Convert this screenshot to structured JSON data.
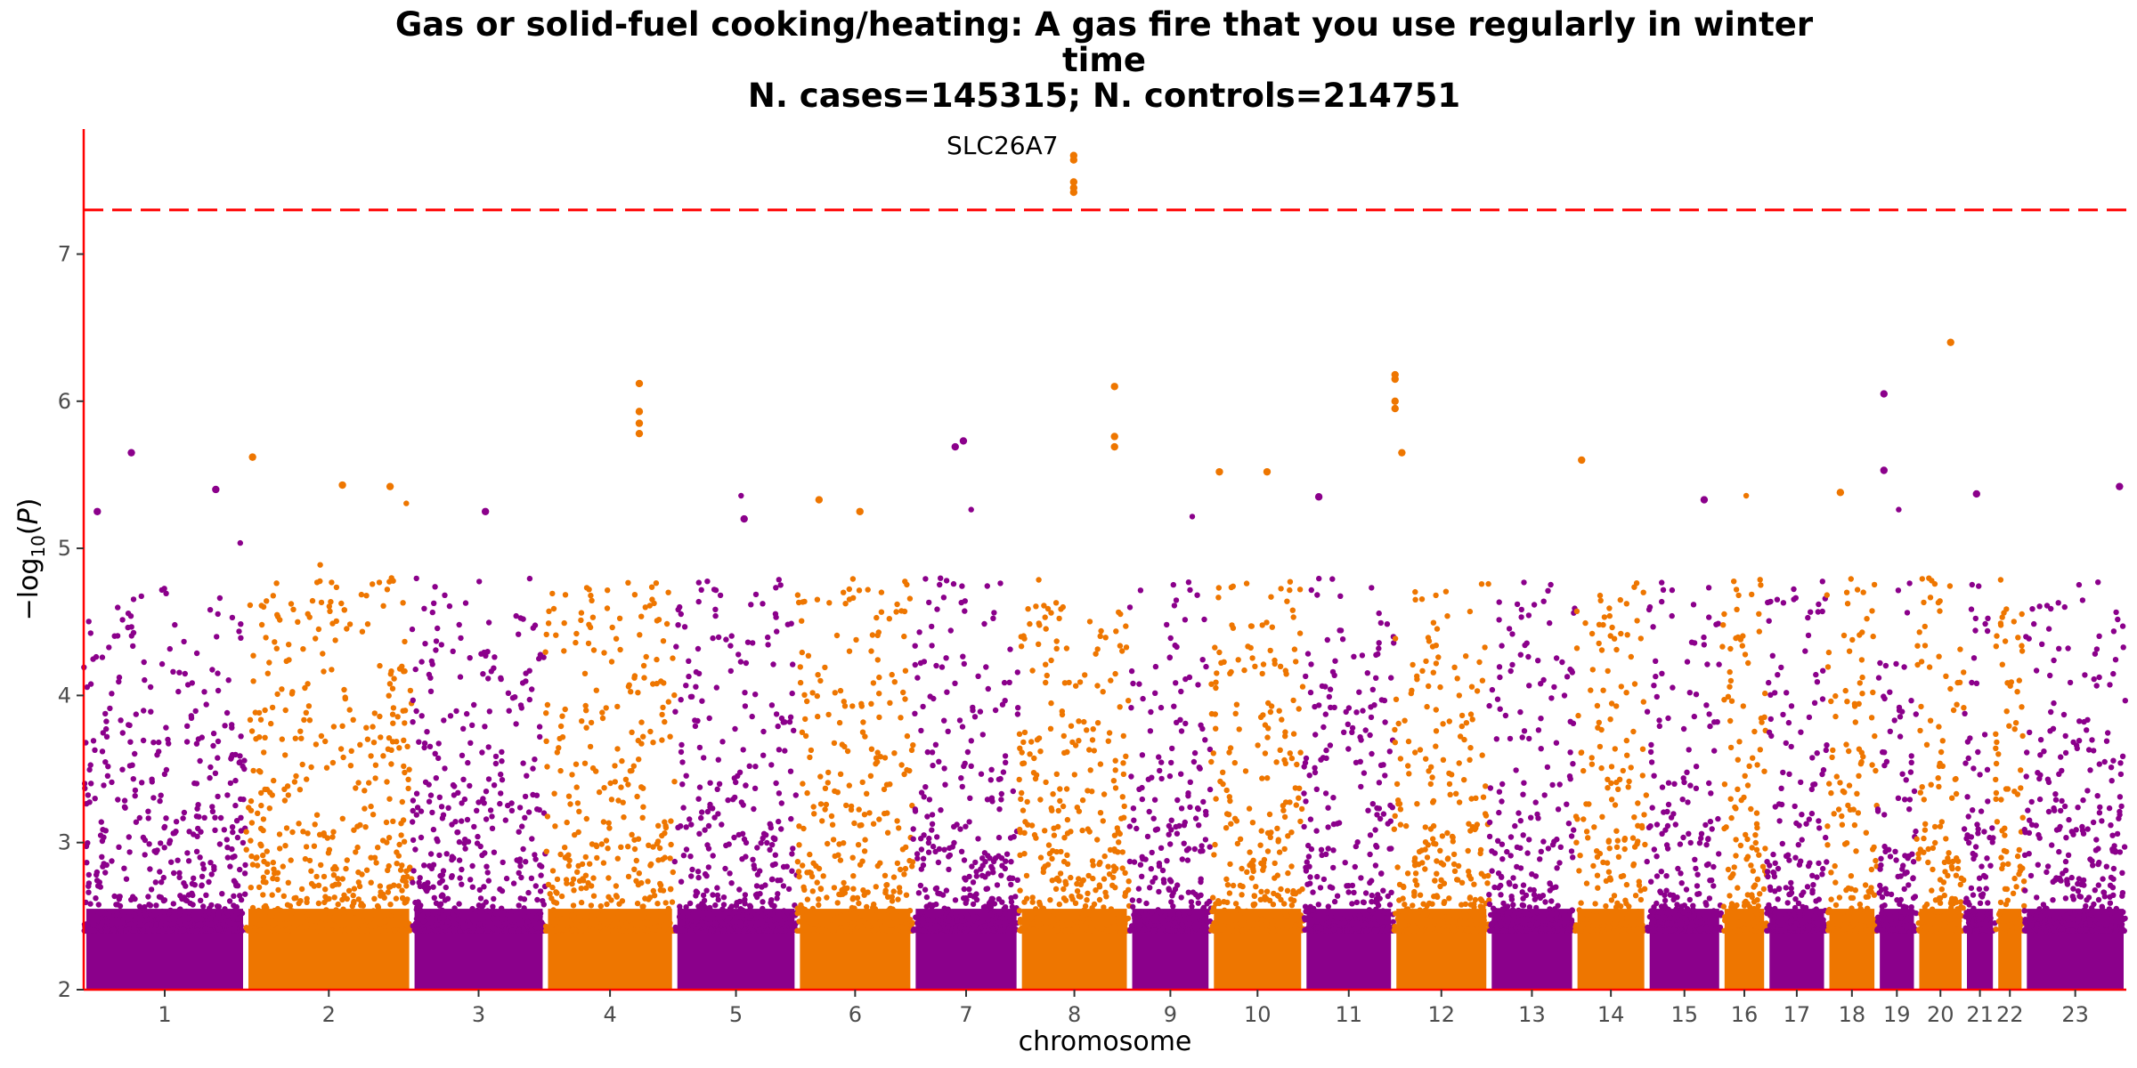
{
  "chart_data": {
    "type": "scatter",
    "subtype": "manhattan",
    "title_lines": [
      "Gas or solid-fuel cooking/heating: A gas fire that you use regularly in winter",
      "time",
      "N. cases=145315; N. controls=214751"
    ],
    "xlabel": "chromosome",
    "ylabel": "−log10(P)",
    "ylim": [
      2,
      7.85
    ],
    "yticks": [
      2,
      3,
      4,
      5,
      6,
      7
    ],
    "significance_line": 7.3,
    "colors": {
      "odd": "#8b008b",
      "even": "#ee7600",
      "threshold": "#ff0000",
      "axis": "#ff0000"
    },
    "chromosomes": [
      {
        "label": "1",
        "x_range": [
          0,
          119
        ],
        "gap_after_start": [
          119,
          139
        ]
      },
      {
        "label": "2",
        "x_range": [
          119,
          241
        ]
      },
      {
        "label": "3",
        "x_range": [
          241,
          339
        ]
      },
      {
        "label": "4",
        "x_range": [
          339,
          434
        ]
      },
      {
        "label": "5",
        "x_range": [
          434,
          524
        ]
      },
      {
        "label": "6",
        "x_range": [
          524,
          609
        ]
      },
      {
        "label": "7",
        "x_range": [
          609,
          687
        ]
      },
      {
        "label": "8",
        "x_range": [
          687,
          768
        ]
      },
      {
        "label": "9",
        "x_range": [
          768,
          828
        ]
      },
      {
        "label": "10",
        "x_range": [
          828,
          896
        ]
      },
      {
        "label": "11",
        "x_range": [
          896,
          962
        ]
      },
      {
        "label": "12",
        "x_range": [
          962,
          1032
        ]
      },
      {
        "label": "13",
        "x_range": [
          1032,
          1095
        ]
      },
      {
        "label": "14",
        "x_range": [
          1095,
          1148
        ]
      },
      {
        "label": "15",
        "x_range": [
          1148,
          1203
        ]
      },
      {
        "label": "16",
        "x_range": [
          1203,
          1236
        ]
      },
      {
        "label": "17",
        "x_range": [
          1236,
          1280
        ]
      },
      {
        "label": "18",
        "x_range": [
          1280,
          1317
        ]
      },
      {
        "label": "19",
        "x_range": [
          1317,
          1346
        ]
      },
      {
        "label": "20",
        "x_range": [
          1346,
          1381
        ]
      },
      {
        "label": "21",
        "x_range": [
          1381,
          1404
        ]
      },
      {
        "label": "22",
        "x_range": [
          1404,
          1425
        ]
      },
      {
        "label": "23",
        "x_range": [
          1425,
          1500
        ]
      }
    ],
    "peaks": [
      {
        "chrom": "1",
        "x": 35,
        "y": 5.65
      },
      {
        "chrom": "1",
        "x": 10,
        "y": 5.25
      },
      {
        "chrom": "1",
        "x": 97,
        "y": 5.4
      },
      {
        "chrom": "2",
        "x": 124,
        "y": 5.62
      },
      {
        "chrom": "2",
        "x": 190,
        "y": 5.43
      },
      {
        "chrom": "2",
        "x": 225,
        "y": 5.42
      },
      {
        "chrom": "3",
        "x": 295,
        "y": 5.25
      },
      {
        "chrom": "4",
        "x": 408,
        "y": 6.12
      },
      {
        "chrom": "4",
        "x": 408,
        "y": 5.93
      },
      {
        "chrom": "4",
        "x": 408,
        "y": 5.85
      },
      {
        "chrom": "4",
        "x": 408,
        "y": 5.78
      },
      {
        "chrom": "5",
        "x": 485,
        "y": 5.2
      },
      {
        "chrom": "6",
        "x": 540,
        "y": 5.33
      },
      {
        "chrom": "6",
        "x": 570,
        "y": 5.25
      },
      {
        "chrom": "7",
        "x": 646,
        "y": 5.73
      },
      {
        "chrom": "7",
        "x": 640,
        "y": 5.69
      },
      {
        "chrom": "8",
        "x": 727,
        "y": 7.67
      },
      {
        "chrom": "8",
        "x": 727,
        "y": 7.64
      },
      {
        "chrom": "8",
        "x": 727,
        "y": 7.49
      },
      {
        "chrom": "8",
        "x": 727,
        "y": 7.45
      },
      {
        "chrom": "8",
        "x": 727,
        "y": 7.42
      },
      {
        "chrom": "8",
        "x": 757,
        "y": 6.1
      },
      {
        "chrom": "8",
        "x": 757,
        "y": 5.76
      },
      {
        "chrom": "8",
        "x": 757,
        "y": 5.69
      },
      {
        "chrom": "10",
        "x": 834,
        "y": 5.52
      },
      {
        "chrom": "10",
        "x": 869,
        "y": 5.52
      },
      {
        "chrom": "11",
        "x": 907,
        "y": 5.35
      },
      {
        "chrom": "12",
        "x": 963,
        "y": 6.18
      },
      {
        "chrom": "12",
        "x": 963,
        "y": 6.15
      },
      {
        "chrom": "12",
        "x": 963,
        "y": 6.0
      },
      {
        "chrom": "12",
        "x": 963,
        "y": 5.95
      },
      {
        "chrom": "12",
        "x": 968,
        "y": 5.65
      },
      {
        "chrom": "14",
        "x": 1100,
        "y": 5.6
      },
      {
        "chrom": "15",
        "x": 1190,
        "y": 5.33
      },
      {
        "chrom": "18",
        "x": 1290,
        "y": 5.38
      },
      {
        "chrom": "19",
        "x": 1322,
        "y": 6.05
      },
      {
        "chrom": "19",
        "x": 1322,
        "y": 5.53
      },
      {
        "chrom": "20",
        "x": 1371,
        "y": 6.4
      },
      {
        "chrom": "21",
        "x": 1390,
        "y": 5.37
      },
      {
        "chrom": "23",
        "x": 1495,
        "y": 5.42
      }
    ],
    "annotations": [
      {
        "text": "SLC26A7",
        "chrom": "8",
        "x": 727,
        "y": 7.67
      }
    ]
  }
}
